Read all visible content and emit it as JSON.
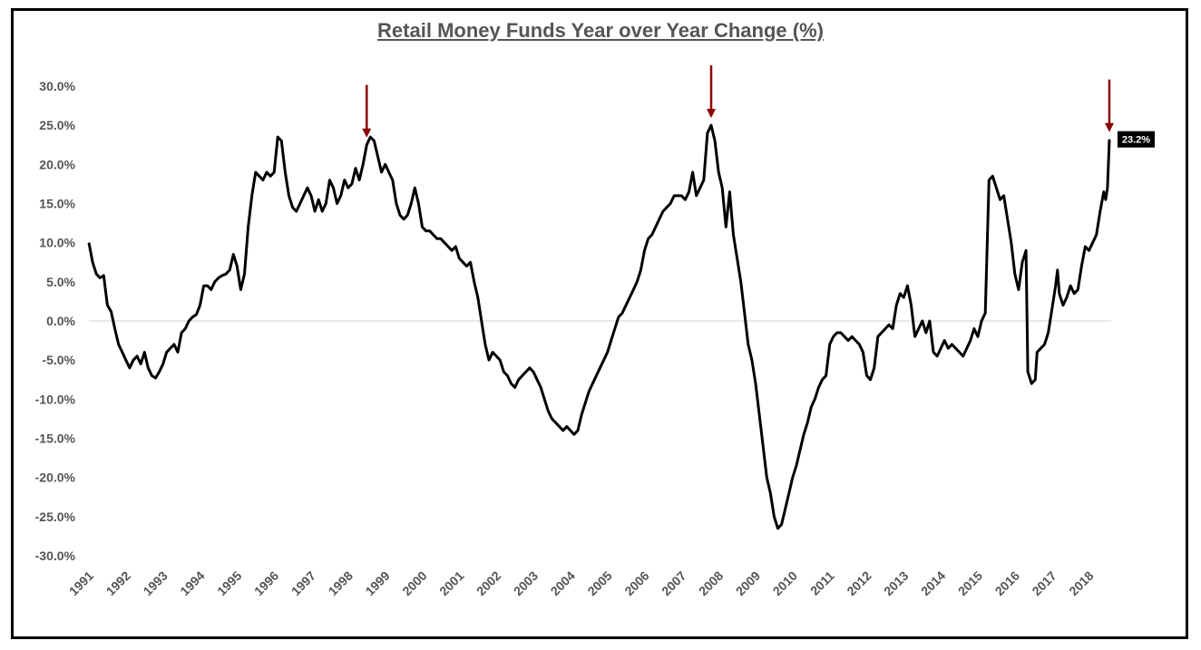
{
  "chart_data": {
    "type": "line",
    "title": "Retail Money Funds Year over Year Change (%)",
    "xlabel": "",
    "ylabel": "",
    "ylim": [
      -30,
      30
    ],
    "xlim": [
      1991,
      2018.6
    ],
    "y_ticks": [
      "30.0%",
      "25.0%",
      "20.0%",
      "15.0%",
      "10.0%",
      "5.0%",
      "0.0%",
      "-5.0%",
      "-10.0%",
      "-15.0%",
      "-20.0%",
      "-25.0%",
      "-30.0%"
    ],
    "y_tick_values": [
      30,
      25,
      20,
      15,
      10,
      5,
      0,
      -5,
      -10,
      -15,
      -20,
      -25,
      -30
    ],
    "x_ticks": [
      "1991",
      "1992",
      "1993",
      "1994",
      "1995",
      "1996",
      "1997",
      "1998",
      "1999",
      "2000",
      "2001",
      "2002",
      "2003",
      "2004",
      "2005",
      "2006",
      "2007",
      "2008",
      "2009",
      "2010",
      "2011",
      "2012",
      "2013",
      "2014",
      "2015",
      "2016",
      "2017",
      "2018"
    ],
    "grid": false,
    "zero_line": true,
    "series": [
      {
        "color": "#000000",
        "points": [
          [
            1991.0,
            10.0
          ],
          [
            1991.1,
            7.5
          ],
          [
            1991.2,
            6.0
          ],
          [
            1991.3,
            5.5
          ],
          [
            1991.4,
            5.8
          ],
          [
            1991.5,
            2.0
          ],
          [
            1991.6,
            1.2
          ],
          [
            1991.7,
            -1.0
          ],
          [
            1991.8,
            -3.0
          ],
          [
            1991.9,
            -4.0
          ],
          [
            1992.0,
            -5.0
          ],
          [
            1992.1,
            -6.0
          ],
          [
            1992.2,
            -5.0
          ],
          [
            1992.3,
            -4.5
          ],
          [
            1992.4,
            -5.5
          ],
          [
            1992.5,
            -4.0
          ],
          [
            1992.6,
            -6.0
          ],
          [
            1992.7,
            -7.0
          ],
          [
            1992.8,
            -7.3
          ],
          [
            1992.9,
            -6.5
          ],
          [
            1993.0,
            -5.5
          ],
          [
            1993.1,
            -4.0
          ],
          [
            1993.2,
            -3.5
          ],
          [
            1993.3,
            -3.0
          ],
          [
            1993.4,
            -4.0
          ],
          [
            1993.5,
            -1.5
          ],
          [
            1993.6,
            -1.0
          ],
          [
            1993.7,
            0.0
          ],
          [
            1993.8,
            0.5
          ],
          [
            1993.9,
            0.8
          ],
          [
            1994.0,
            2.0
          ],
          [
            1994.1,
            4.5
          ],
          [
            1994.2,
            4.5
          ],
          [
            1994.3,
            4.0
          ],
          [
            1994.4,
            5.0
          ],
          [
            1994.5,
            5.5
          ],
          [
            1994.6,
            5.8
          ],
          [
            1994.7,
            6.0
          ],
          [
            1994.8,
            6.5
          ],
          [
            1994.9,
            8.5
          ],
          [
            1995.0,
            7.0
          ],
          [
            1995.1,
            4.0
          ],
          [
            1995.2,
            6.0
          ],
          [
            1995.3,
            12.0
          ],
          [
            1995.4,
            16.0
          ],
          [
            1995.5,
            19.0
          ],
          [
            1995.6,
            18.5
          ],
          [
            1995.7,
            18.0
          ],
          [
            1995.8,
            19.0
          ],
          [
            1995.9,
            18.5
          ],
          [
            1996.0,
            19.0
          ],
          [
            1996.1,
            23.5
          ],
          [
            1996.2,
            23.0
          ],
          [
            1996.3,
            19.0
          ],
          [
            1996.4,
            16.0
          ],
          [
            1996.5,
            14.5
          ],
          [
            1996.6,
            14.0
          ],
          [
            1996.7,
            15.0
          ],
          [
            1996.8,
            16.0
          ],
          [
            1996.9,
            17.0
          ],
          [
            1997.0,
            16.0
          ],
          [
            1997.1,
            14.0
          ],
          [
            1997.2,
            15.5
          ],
          [
            1997.3,
            14.0
          ],
          [
            1997.4,
            15.0
          ],
          [
            1997.5,
            18.0
          ],
          [
            1997.6,
            17.0
          ],
          [
            1997.7,
            15.0
          ],
          [
            1997.8,
            16.0
          ],
          [
            1997.9,
            18.0
          ],
          [
            1998.0,
            17.0
          ],
          [
            1998.1,
            17.5
          ],
          [
            1998.2,
            19.5
          ],
          [
            1998.3,
            18.0
          ],
          [
            1998.4,
            20.0
          ],
          [
            1998.5,
            22.5
          ],
          [
            1998.6,
            23.5
          ],
          [
            1998.7,
            23.0
          ],
          [
            1998.8,
            21.0
          ],
          [
            1998.9,
            19.0
          ],
          [
            1999.0,
            20.0
          ],
          [
            1999.1,
            19.0
          ],
          [
            1999.2,
            18.0
          ],
          [
            1999.3,
            15.0
          ],
          [
            1999.4,
            13.5
          ],
          [
            1999.5,
            13.0
          ],
          [
            1999.6,
            13.5
          ],
          [
            1999.7,
            15.0
          ],
          [
            1999.8,
            17.0
          ],
          [
            1999.9,
            15.0
          ],
          [
            2000.0,
            12.0
          ],
          [
            2000.1,
            11.5
          ],
          [
            2000.2,
            11.5
          ],
          [
            2000.3,
            11.0
          ],
          [
            2000.4,
            10.5
          ],
          [
            2000.5,
            10.5
          ],
          [
            2000.6,
            10.0
          ],
          [
            2000.7,
            9.5
          ],
          [
            2000.8,
            9.0
          ],
          [
            2000.9,
            9.5
          ],
          [
            2001.0,
            8.0
          ],
          [
            2001.1,
            7.5
          ],
          [
            2001.2,
            7.0
          ],
          [
            2001.3,
            7.5
          ],
          [
            2001.4,
            5.0
          ],
          [
            2001.5,
            3.0
          ],
          [
            2001.6,
            0.0
          ],
          [
            2001.7,
            -3.0
          ],
          [
            2001.8,
            -5.0
          ],
          [
            2001.9,
            -4.0
          ],
          [
            2002.0,
            -4.5
          ],
          [
            2002.1,
            -5.0
          ],
          [
            2002.2,
            -6.5
          ],
          [
            2002.3,
            -7.0
          ],
          [
            2002.4,
            -8.0
          ],
          [
            2002.5,
            -8.5
          ],
          [
            2002.6,
            -7.5
          ],
          [
            2002.7,
            -7.0
          ],
          [
            2002.8,
            -6.5
          ],
          [
            2002.9,
            -6.0
          ],
          [
            2003.0,
            -6.5
          ],
          [
            2003.1,
            -7.5
          ],
          [
            2003.2,
            -8.5
          ],
          [
            2003.3,
            -10.0
          ],
          [
            2003.4,
            -11.5
          ],
          [
            2003.5,
            -12.5
          ],
          [
            2003.6,
            -13.0
          ],
          [
            2003.7,
            -13.5
          ],
          [
            2003.8,
            -14.0
          ],
          [
            2003.9,
            -13.5
          ],
          [
            2004.0,
            -14.0
          ],
          [
            2004.1,
            -14.5
          ],
          [
            2004.2,
            -14.0
          ],
          [
            2004.3,
            -12.0
          ],
          [
            2004.4,
            -10.5
          ],
          [
            2004.5,
            -9.0
          ],
          [
            2004.6,
            -8.0
          ],
          [
            2004.7,
            -7.0
          ],
          [
            2004.8,
            -6.0
          ],
          [
            2004.9,
            -5.0
          ],
          [
            2005.0,
            -4.0
          ],
          [
            2005.1,
            -2.5
          ],
          [
            2005.2,
            -1.0
          ],
          [
            2005.3,
            0.5
          ],
          [
            2005.4,
            1.0
          ],
          [
            2005.5,
            2.0
          ],
          [
            2005.6,
            3.0
          ],
          [
            2005.7,
            4.0
          ],
          [
            2005.8,
            5.0
          ],
          [
            2005.9,
            6.5
          ],
          [
            2006.0,
            9.0
          ],
          [
            2006.1,
            10.5
          ],
          [
            2006.2,
            11.0
          ],
          [
            2006.3,
            12.0
          ],
          [
            2006.4,
            13.0
          ],
          [
            2006.5,
            14.0
          ],
          [
            2006.6,
            14.5
          ],
          [
            2006.7,
            15.0
          ],
          [
            2006.8,
            16.0
          ],
          [
            2006.9,
            16.0
          ],
          [
            2007.0,
            16.0
          ],
          [
            2007.1,
            15.5
          ],
          [
            2007.2,
            16.5
          ],
          [
            2007.3,
            19.0
          ],
          [
            2007.4,
            16.0
          ],
          [
            2007.5,
            17.0
          ],
          [
            2007.6,
            18.0
          ],
          [
            2007.7,
            24.0
          ],
          [
            2007.8,
            25.0
          ],
          [
            2007.9,
            23.0
          ],
          [
            2008.0,
            19.0
          ],
          [
            2008.1,
            17.0
          ],
          [
            2008.2,
            12.0
          ],
          [
            2008.3,
            16.5
          ],
          [
            2008.4,
            11.0
          ],
          [
            2008.5,
            8.0
          ],
          [
            2008.6,
            5.0
          ],
          [
            2008.7,
            1.0
          ],
          [
            2008.8,
            -3.0
          ],
          [
            2008.9,
            -5.0
          ],
          [
            2009.0,
            -8.0
          ],
          [
            2009.1,
            -12.0
          ],
          [
            2009.2,
            -16.0
          ],
          [
            2009.3,
            -20.0
          ],
          [
            2009.4,
            -22.0
          ],
          [
            2009.5,
            -25.0
          ],
          [
            2009.6,
            -26.5
          ],
          [
            2009.7,
            -26.0
          ],
          [
            2009.8,
            -24.0
          ],
          [
            2009.9,
            -22.0
          ],
          [
            2010.0,
            -20.0
          ],
          [
            2010.1,
            -18.5
          ],
          [
            2010.2,
            -16.5
          ],
          [
            2010.3,
            -14.5
          ],
          [
            2010.4,
            -13.0
          ],
          [
            2010.5,
            -11.0
          ],
          [
            2010.6,
            -10.0
          ],
          [
            2010.7,
            -8.5
          ],
          [
            2010.8,
            -7.5
          ],
          [
            2010.9,
            -7.0
          ],
          [
            2011.0,
            -3.0
          ],
          [
            2011.1,
            -2.0
          ],
          [
            2011.2,
            -1.5
          ],
          [
            2011.3,
            -1.5
          ],
          [
            2011.4,
            -2.0
          ],
          [
            2011.5,
            -2.5
          ],
          [
            2011.6,
            -2.0
          ],
          [
            2011.7,
            -2.5
          ],
          [
            2011.8,
            -3.0
          ],
          [
            2011.9,
            -4.0
          ],
          [
            2012.0,
            -7.0
          ],
          [
            2012.1,
            -7.5
          ],
          [
            2012.2,
            -6.0
          ],
          [
            2012.3,
            -2.0
          ],
          [
            2012.4,
            -1.5
          ],
          [
            2012.5,
            -1.0
          ],
          [
            2012.6,
            -0.5
          ],
          [
            2012.7,
            -1.0
          ],
          [
            2012.8,
            2.0
          ],
          [
            2012.9,
            3.5
          ],
          [
            2013.0,
            3.0
          ],
          [
            2013.1,
            4.5
          ],
          [
            2013.2,
            2.0
          ],
          [
            2013.3,
            -2.0
          ],
          [
            2013.4,
            -1.0
          ],
          [
            2013.5,
            0.0
          ],
          [
            2013.6,
            -1.5
          ],
          [
            2013.7,
            0.0
          ],
          [
            2013.8,
            -4.0
          ],
          [
            2013.9,
            -4.5
          ],
          [
            2014.0,
            -3.5
          ],
          [
            2014.1,
            -2.5
          ],
          [
            2014.2,
            -3.5
          ],
          [
            2014.3,
            -3.0
          ],
          [
            2014.4,
            -3.5
          ],
          [
            2014.5,
            -4.0
          ],
          [
            2014.6,
            -4.5
          ],
          [
            2014.7,
            -3.5
          ],
          [
            2014.8,
            -2.5
          ],
          [
            2014.9,
            -1.0
          ],
          [
            2015.0,
            -2.0
          ],
          [
            2015.1,
            0.0
          ],
          [
            2015.2,
            1.0
          ],
          [
            2015.3,
            18.0
          ],
          [
            2015.4,
            18.5
          ],
          [
            2015.5,
            17.0
          ],
          [
            2015.6,
            15.5
          ],
          [
            2015.7,
            16.0
          ],
          [
            2015.8,
            13.0
          ],
          [
            2015.9,
            10.0
          ],
          [
            2016.0,
            6.0
          ],
          [
            2016.1,
            4.0
          ],
          [
            2016.2,
            7.5
          ],
          [
            2016.3,
            9.0
          ],
          [
            2016.35,
            -6.5
          ],
          [
            2016.45,
            -8.0
          ],
          [
            2016.55,
            -7.5
          ],
          [
            2016.6,
            -4.0
          ],
          [
            2016.7,
            -3.5
          ],
          [
            2016.8,
            -3.0
          ],
          [
            2016.9,
            -1.5
          ],
          [
            2017.0,
            1.5
          ],
          [
            2017.1,
            4.5
          ],
          [
            2017.15,
            6.5
          ],
          [
            2017.2,
            3.5
          ],
          [
            2017.3,
            2.0
          ],
          [
            2017.4,
            3.0
          ],
          [
            2017.5,
            4.5
          ],
          [
            2017.6,
            3.5
          ],
          [
            2017.7,
            4.0
          ],
          [
            2017.8,
            7.0
          ],
          [
            2017.9,
            9.5
          ],
          [
            2018.0,
            9.0
          ],
          [
            2018.1,
            10.0
          ],
          [
            2018.2,
            11.0
          ],
          [
            2018.3,
            14.0
          ],
          [
            2018.4,
            16.5
          ],
          [
            2018.45,
            15.5
          ],
          [
            2018.5,
            17.0
          ],
          [
            2018.55,
            23.2
          ]
        ]
      }
    ],
    "annotations": [
      {
        "type": "arrow",
        "x": 1998.5,
        "color": "#8B0000"
      },
      {
        "type": "arrow",
        "x": 2007.8,
        "color": "#8B0000"
      },
      {
        "type": "arrow",
        "x": 2018.55,
        "color": "#8B0000"
      }
    ],
    "end_label": {
      "x": 2018.55,
      "y": 23.2,
      "text": "23.2%"
    }
  }
}
